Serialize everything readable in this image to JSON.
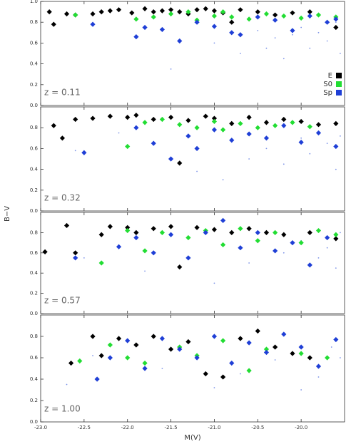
{
  "chart_data": [
    {
      "type": "scatter",
      "y_label": "B−V",
      "annotation": "z = 0.11",
      "legend": "lower right",
      "xlim": [
        -23.0,
        -19.5
      ],
      "ylim": [
        0,
        1
      ],
      "yticks": [
        {
          "value": 0,
          "label": "0.0"
        },
        0.2,
        0.4,
        0.6,
        0.8,
        {
          "value": 1,
          "label": "1.0"
        }
      ],
      "series": [
        {
          "name": "E",
          "color": "#000000",
          "x": [
            -22.9,
            -22.85,
            -22.7,
            -22.6,
            -22.4,
            -22.3,
            -22.2,
            -22.1,
            -21.95,
            -21.8,
            -21.7,
            -21.6,
            -21.5,
            -21.4,
            -21.3,
            -21.2,
            -21.1,
            -21.0,
            -20.9,
            -20.8,
            -20.7,
            -20.5,
            -20.3,
            -20.1,
            -19.9,
            -19.6
          ],
          "values": [
            0.9,
            0.78,
            0.88,
            0.87,
            0.88,
            0.9,
            0.91,
            0.92,
            0.89,
            0.93,
            0.9,
            0.91,
            0.92,
            0.9,
            0.88,
            0.92,
            0.93,
            0.91,
            0.89,
            0.8,
            0.92,
            0.9,
            0.87,
            0.89,
            0.9,
            0.75
          ]
        },
        {
          "name": "S0",
          "color": "#22dd33",
          "x": [
            -22.6,
            -21.9,
            -21.7,
            -21.5,
            -21.3,
            -21.2,
            -21.0,
            -20.9,
            -20.8,
            -20.6,
            -20.4,
            -20.2,
            -20.0,
            -19.8,
            -19.6
          ],
          "values": [
            0.87,
            0.83,
            0.85,
            0.88,
            0.9,
            0.82,
            0.86,
            0.9,
            0.85,
            0.83,
            0.88,
            0.86,
            0.84,
            0.87,
            0.85
          ]
        },
        {
          "name": "Sp",
          "color": "#1f3fd6",
          "x": [
            -22.4,
            -21.9,
            -21.8,
            -21.6,
            -21.4,
            -21.2,
            -21.0,
            -20.8,
            -20.7,
            -20.5,
            -20.3,
            -20.1,
            -19.9,
            -19.7,
            -19.6
          ],
          "values": [
            0.78,
            0.66,
            0.75,
            0.73,
            0.62,
            0.8,
            0.76,
            0.7,
            0.68,
            0.85,
            0.82,
            0.72,
            0.86,
            0.8,
            0.83
          ]
        }
      ],
      "background": {
        "color": "#7f95e8",
        "x": [
          -21.5,
          -21.0,
          -20.7,
          -20.5,
          -20.3,
          -20.2,
          -20.0,
          -19.9,
          -19.8,
          -19.7,
          -19.6,
          -20.4,
          -20.1,
          -19.55
        ],
        "values": [
          0.35,
          0.6,
          0.5,
          0.72,
          0.65,
          0.45,
          0.75,
          0.55,
          0.7,
          0.62,
          0.8,
          0.55,
          0.68,
          0.5
        ]
      }
    },
    {
      "type": "scatter",
      "annotation": "z = 0.32",
      "xlim": [
        -23.0,
        -19.5
      ],
      "ylim": [
        0,
        1
      ],
      "yticks": [
        {
          "value": 0,
          "label": "0.0"
        },
        0.2,
        0.4,
        0.6,
        0.8
      ],
      "series": [
        {
          "name": "E",
          "color": "#000000",
          "x": [
            -22.85,
            -22.75,
            -22.6,
            -22.4,
            -22.2,
            -22.0,
            -21.9,
            -21.7,
            -21.5,
            -21.4,
            -21.3,
            -21.1,
            -21.0,
            -20.8,
            -20.6,
            -20.4,
            -20.2,
            -20.0,
            -19.8,
            -19.6
          ],
          "values": [
            0.82,
            0.7,
            0.88,
            0.89,
            0.91,
            0.9,
            0.92,
            0.88,
            0.9,
            0.46,
            0.87,
            0.91,
            0.89,
            0.84,
            0.9,
            0.85,
            0.88,
            0.86,
            0.83,
            0.84
          ]
        },
        {
          "name": "S0",
          "color": "#22dd33",
          "x": [
            -22.0,
            -21.8,
            -21.6,
            -21.4,
            -21.2,
            -21.0,
            -20.9,
            -20.7,
            -20.5,
            -20.3,
            -20.1,
            -19.9
          ],
          "values": [
            0.62,
            0.85,
            0.88,
            0.83,
            0.8,
            0.86,
            0.78,
            0.84,
            0.8,
            0.82,
            0.85,
            0.81
          ]
        },
        {
          "name": "Sp",
          "color": "#1f3fd6",
          "x": [
            -22.5,
            -21.9,
            -21.7,
            -21.5,
            -21.3,
            -21.2,
            -21.0,
            -20.8,
            -20.6,
            -20.4,
            -20.2,
            -20.0,
            -19.8,
            -19.6
          ],
          "values": [
            0.56,
            0.8,
            0.65,
            0.5,
            0.72,
            0.6,
            0.78,
            0.68,
            0.74,
            0.7,
            0.82,
            0.66,
            0.75,
            0.62
          ]
        }
      ],
      "background": {
        "color": "#7f95e8",
        "x": [
          -22.6,
          -22.1,
          -21.2,
          -20.9,
          -20.6,
          -20.4,
          -20.2,
          -20.0,
          -19.9,
          -19.7,
          -19.6,
          -19.55
        ],
        "values": [
          0.58,
          0.75,
          0.38,
          0.3,
          0.5,
          0.6,
          0.45,
          0.7,
          0.55,
          0.65,
          0.4,
          0.72
        ]
      }
    },
    {
      "type": "scatter",
      "annotation": "z = 0.57",
      "xlim": [
        -23.0,
        -19.5
      ],
      "ylim": [
        0,
        1
      ],
      "yticks": [
        {
          "value": 0,
          "label": "0.0"
        },
        0.2,
        0.4,
        0.6,
        0.8
      ],
      "series": [
        {
          "name": "E",
          "color": "#000000",
          "x": [
            -22.95,
            -22.7,
            -22.6,
            -22.3,
            -22.2,
            -22.0,
            -21.9,
            -21.7,
            -21.5,
            -21.4,
            -21.2,
            -21.0,
            -20.8,
            -20.6,
            -20.4,
            -20.2,
            -19.9,
            -19.6
          ],
          "values": [
            0.61,
            0.87,
            0.6,
            0.78,
            0.86,
            0.85,
            0.8,
            0.84,
            0.86,
            0.46,
            0.85,
            0.83,
            0.8,
            0.84,
            0.8,
            0.78,
            0.8,
            0.74
          ]
        },
        {
          "name": "S0",
          "color": "#22dd33",
          "x": [
            -22.3,
            -22.0,
            -21.8,
            -21.6,
            -21.3,
            -21.1,
            -20.9,
            -20.7,
            -20.5,
            -20.3,
            -20.0,
            -19.8,
            -19.6
          ],
          "values": [
            0.5,
            0.82,
            0.62,
            0.8,
            0.75,
            0.82,
            0.68,
            0.84,
            0.72,
            0.8,
            0.7,
            0.82,
            0.78
          ]
        },
        {
          "name": "Sp",
          "color": "#1f3fd6",
          "x": [
            -22.6,
            -22.1,
            -21.9,
            -21.7,
            -21.5,
            -21.3,
            -21.1,
            -20.9,
            -20.7,
            -20.5,
            -20.3,
            -20.1,
            -19.9,
            -19.7
          ],
          "values": [
            0.55,
            0.66,
            0.75,
            0.6,
            0.78,
            0.55,
            0.8,
            0.92,
            0.65,
            0.8,
            0.62,
            0.7,
            0.48,
            0.75
          ]
        }
      ],
      "background": {
        "color": "#7f95e8",
        "x": [
          -22.5,
          -21.8,
          -21.0,
          -20.6,
          -20.2,
          -20.0,
          -19.8,
          -19.7,
          -19.6,
          -19.55
        ],
        "values": [
          0.55,
          0.42,
          0.3,
          0.5,
          0.6,
          0.72,
          0.55,
          0.65,
          0.45,
          0.8
        ]
      }
    },
    {
      "type": "scatter",
      "annotation": "z = 1.00",
      "x_label": "M(V)",
      "xlim": [
        -23.0,
        -19.5
      ],
      "ylim": [
        0,
        1
      ],
      "xticks": [
        {
          "value": -23,
          "label": "-23.0"
        },
        -22.5,
        {
          "value": -22,
          "label": "-22.0"
        },
        -21.5,
        {
          "value": -21,
          "label": "-21.0"
        },
        -20.5,
        {
          "value": -20,
          "label": "-20.0"
        }
      ],
      "yticks": [
        {
          "value": 0,
          "label": "0.0"
        },
        0.2,
        0.4,
        0.6,
        0.8
      ],
      "series": [
        {
          "name": "E",
          "color": "#000000",
          "x": [
            -22.65,
            -22.4,
            -22.3,
            -22.1,
            -21.9,
            -21.7,
            -21.5,
            -21.3,
            -21.1,
            -20.9,
            -20.7,
            -20.5,
            -20.3,
            -20.1,
            -19.9
          ],
          "values": [
            0.55,
            0.8,
            0.62,
            0.78,
            0.72,
            0.8,
            0.68,
            0.75,
            0.45,
            0.42,
            0.78,
            0.85,
            0.7,
            0.64,
            0.6
          ]
        },
        {
          "name": "S0",
          "color": "#22dd33",
          "x": [
            -22.55,
            -22.2,
            -22.0,
            -21.8,
            -21.4,
            -21.2,
            -20.9,
            -20.6,
            -20.4,
            -20.0,
            -19.7
          ],
          "values": [
            0.57,
            0.72,
            0.6,
            0.55,
            0.7,
            0.62,
            0.76,
            0.48,
            0.68,
            0.64,
            0.6
          ]
        },
        {
          "name": "Sp",
          "color": "#1f3fd6",
          "x": [
            -22.35,
            -22.2,
            -22.0,
            -21.8,
            -21.6,
            -21.4,
            -21.2,
            -21.0,
            -20.8,
            -20.6,
            -20.4,
            -20.2,
            -20.0,
            -19.8,
            -19.6
          ],
          "values": [
            0.4,
            0.6,
            0.76,
            0.5,
            0.78,
            0.68,
            0.6,
            0.8,
            0.55,
            0.74,
            0.65,
            0.82,
            0.7,
            0.52,
            0.77
          ]
        }
      ],
      "background": {
        "color": "#7f95e8",
        "x": [
          -22.7,
          -22.4,
          -21.6,
          -21.0,
          -20.7,
          -20.3,
          -20.0,
          -19.8,
          -19.65,
          -19.55
        ],
        "values": [
          0.35,
          0.62,
          0.5,
          0.32,
          0.45,
          0.58,
          0.3,
          0.42,
          0.7,
          0.6
        ]
      }
    }
  ]
}
